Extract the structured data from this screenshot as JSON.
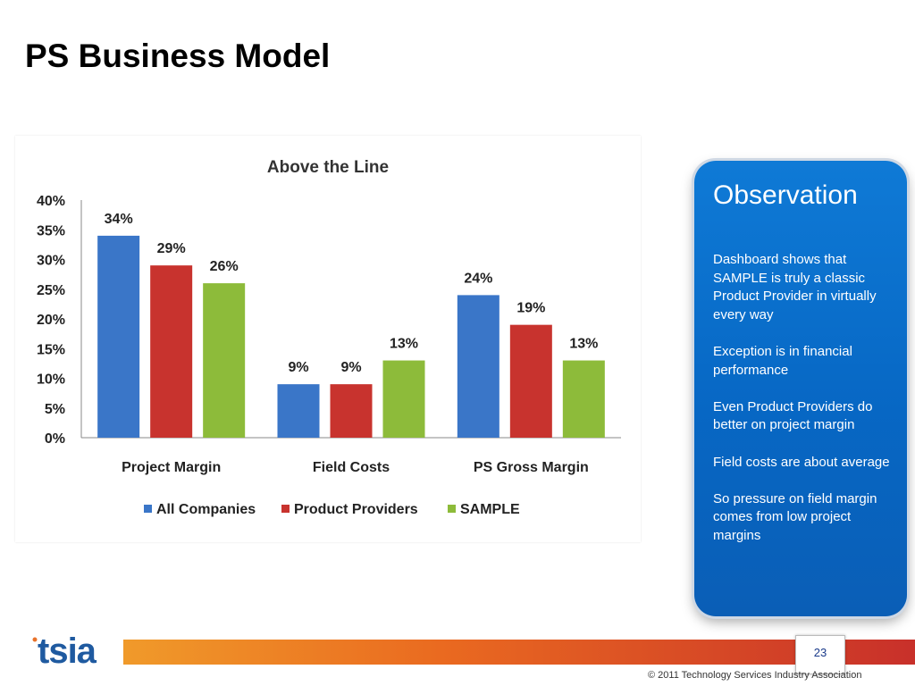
{
  "slide": {
    "title": "PS Business Model",
    "page_number": "23"
  },
  "footer": {
    "copyright": "© 2011 Technology Services Industry Association",
    "logo_text": "tsia"
  },
  "observation": {
    "title": "Observation",
    "items": [
      "Dashboard shows that SAMPLE is truly a classic Product Provider in virtually every way",
      "Exception is in financial performance",
      "Even Product Providers do better on project margin",
      "Field costs are about average",
      "So pressure on field margin comes from low project margins"
    ]
  },
  "chart_data": {
    "type": "bar",
    "title": "Above the Line",
    "categories": [
      "Project Margin",
      "Field Costs",
      "PS Gross Margin"
    ],
    "series": [
      {
        "name": "All Companies",
        "values": [
          34,
          9,
          24
        ],
        "color": "#3a76c8"
      },
      {
        "name": "Product Providers",
        "values": [
          29,
          9,
          19
        ],
        "color": "#c8332e"
      },
      {
        "name": "SAMPLE",
        "values": [
          26,
          13,
          13
        ],
        "color": "#8dbb3a"
      }
    ],
    "data_labels": [
      [
        "34%",
        "9%",
        "24%"
      ],
      [
        "29%",
        "9%",
        "19%"
      ],
      [
        "26%",
        "13%",
        "13%"
      ]
    ],
    "yticks": [
      "0%",
      "5%",
      "10%",
      "15%",
      "20%",
      "25%",
      "30%",
      "35%",
      "40%"
    ],
    "ylim": [
      0,
      40
    ],
    "grid": false,
    "legend": "bottom"
  }
}
